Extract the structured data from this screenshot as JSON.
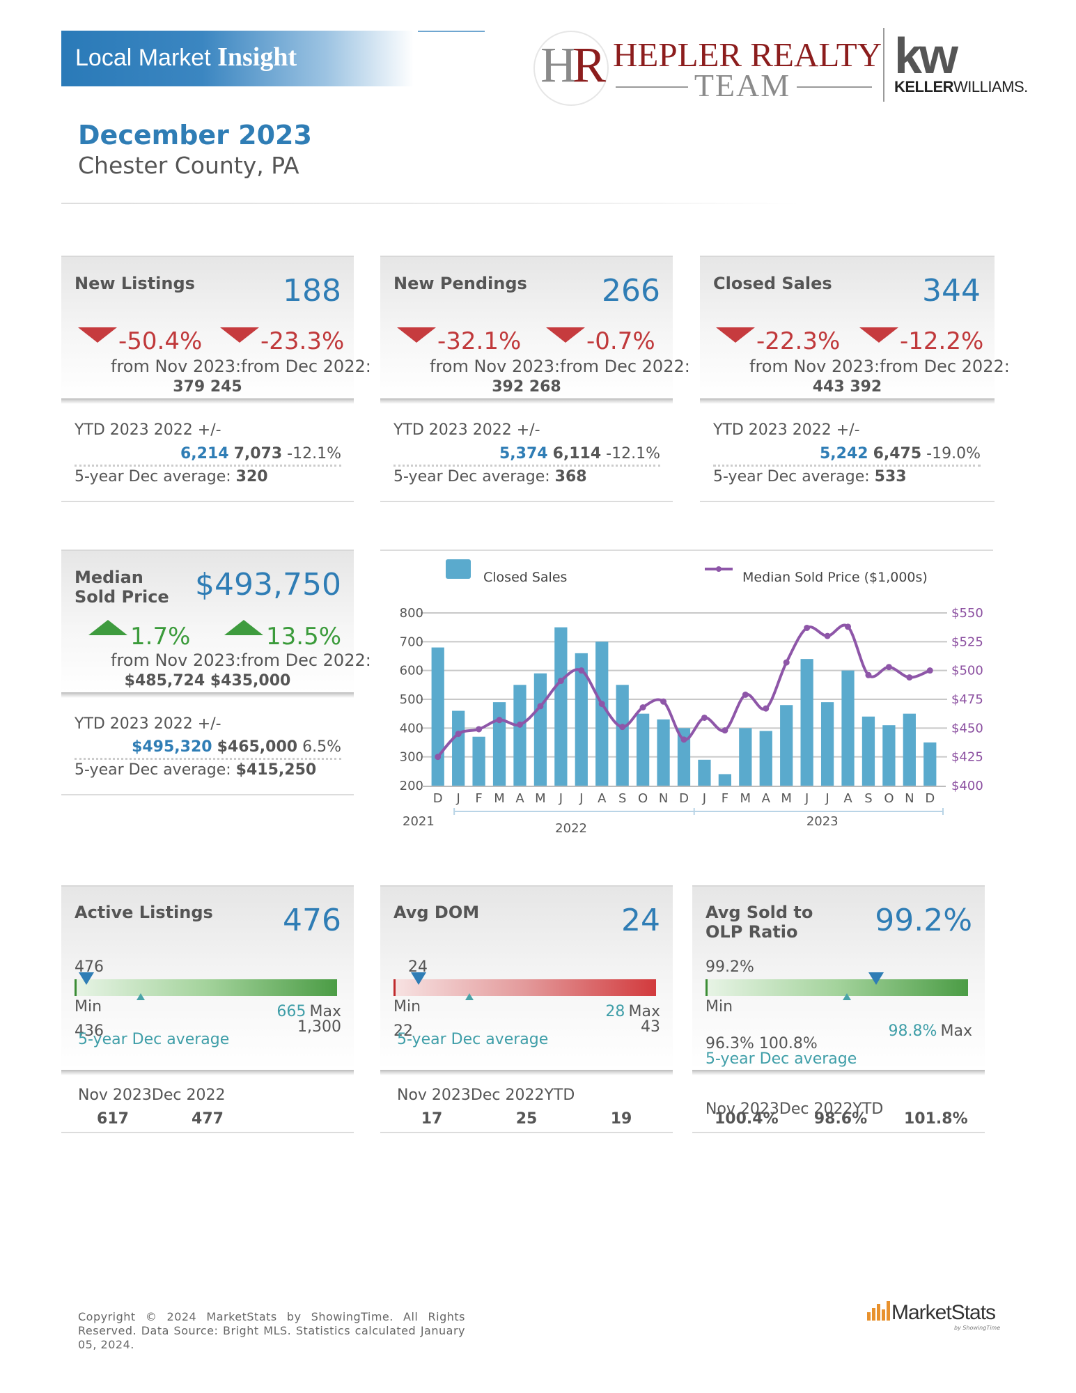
{
  "header": {
    "banner_regular": "Local Market",
    "banner_bold": "Insight",
    "team_monogram_h": "H",
    "team_monogram_r": "R",
    "team_name": "HEPLER REALTY",
    "team_sub": "TEAM",
    "brokerage_logo": "kw",
    "brokerage_bold": "KELLER",
    "brokerage_regular": "WILLIAMS.",
    "period": "December 2023",
    "region": "Chester County, PA"
  },
  "cards": {
    "new_listings": {
      "title": "New Listings",
      "value": "188",
      "pct_month": "-50.4%",
      "pct_year": "-23.3%",
      "from_text": "from Nov 2023:from Dec 2022:",
      "from_vals": "379 245",
      "ytd_label": "YTD 2023 2022 +/-",
      "ytd_cur": "6,214",
      "ytd_prev": "7,073",
      "ytd_pct": "-12.1%",
      "avg_label": "5-year Dec average:",
      "avg_val": "320"
    },
    "new_pendings": {
      "title": "New Pendings",
      "value": "266",
      "pct_month": "-32.1%",
      "pct_year": "-0.7%",
      "from_text": "from Nov 2023:from Dec 2022:",
      "from_vals": "392 268",
      "ytd_label": "YTD 2023 2022 +/-",
      "ytd_cur": "5,374",
      "ytd_prev": "6,114",
      "ytd_pct": "-12.1%",
      "avg_label": "5-year Dec average:",
      "avg_val": "368"
    },
    "closed_sales": {
      "title": "Closed Sales",
      "value": "344",
      "pct_month": "-22.3%",
      "pct_year": "-12.2%",
      "from_text": "from Nov 2023:from Dec 2022:",
      "from_vals": "443 392",
      "ytd_label": "YTD 2023 2022 +/-",
      "ytd_cur": "5,242",
      "ytd_prev": "6,475",
      "ytd_pct": "-19.0%",
      "avg_label": "5-year Dec average:",
      "avg_val": "533"
    },
    "median_price": {
      "title_line1": "Median",
      "title_line2": "Sold Price",
      "value": "$493,750",
      "pct_month": "1.7%",
      "pct_year": "13.5%",
      "from_text": "from Nov 2023:from Dec 2022:",
      "from_vals": "$485,724 $435,000",
      "ytd_label": "YTD 2023 2022 +/-",
      "ytd_cur": "$495,320",
      "ytd_prev": "$465,000",
      "ytd_pct": "6.5%",
      "avg_label": "5-year Dec average:",
      "avg_val": "$415,250"
    },
    "active_listings": {
      "title": "Active Listings",
      "value": "476",
      "gauge_current": "476",
      "gauge_fraction": 0.045,
      "min_label": "Min",
      "min_val": "436",
      "max_val": "1,300",
      "avg_val": "665",
      "max_label": "Max",
      "avg_label": "5-year Dec average",
      "hist_labels": "Nov 2023Dec 2022",
      "hist_vals": [
        "617",
        "477"
      ]
    },
    "avg_dom": {
      "title": "Avg DOM",
      "value": "24",
      "gauge_current": "24",
      "gauge_fraction": 0.095,
      "min_label": "Min",
      "min_val": "22",
      "max_val": "43",
      "avg_val": "28",
      "max_label": "Max",
      "avg_label": "5-year Dec average",
      "hist_labels": "Nov 2023Dec 2022YTD",
      "hist_vals": [
        "17",
        "25",
        "19"
      ]
    },
    "sold_olp": {
      "title_line1": "Avg Sold to",
      "title_line2": "OLP Ratio",
      "value": "99.2%",
      "gauge_current": "99.2%",
      "gauge_fraction": 0.65,
      "min_label": "Min",
      "min_max_vals": "96.3% 100.8%",
      "avg_val": "98.8%",
      "max_label": "Max",
      "avg_label": "5-year Dec average",
      "hist_labels": "Nov 2023Dec 2022YTD",
      "hist_vals": [
        "100.4%",
        "98.6%",
        "101.8%"
      ]
    }
  },
  "chart_data": {
    "type": "bar",
    "legend_bars": "Closed Sales",
    "legend_line": "Median Sold Price ($1,000s)",
    "categories": [
      "D",
      "J",
      "F",
      "M",
      "A",
      "M",
      "J",
      "J",
      "A",
      "S",
      "O",
      "N",
      "D",
      "J",
      "F",
      "M",
      "A",
      "M",
      "J",
      "J",
      "A",
      "S",
      "O",
      "N",
      "D"
    ],
    "year_labels": [
      "2021",
      "2022",
      "2023"
    ],
    "series": [
      {
        "name": "Closed Sales",
        "axis": "left",
        "values": [
          680,
          460,
          370,
          490,
          550,
          590,
          750,
          660,
          700,
          550,
          450,
          430,
          400,
          290,
          240,
          400,
          390,
          480,
          640,
          490,
          600,
          440,
          410,
          450,
          350
        ]
      },
      {
        "name": "Median Sold Price ($1,000s)",
        "axis": "right",
        "values": [
          425,
          445,
          449,
          457,
          453,
          469,
          491,
          500,
          471,
          451,
          468,
          473,
          440,
          459,
          448,
          479,
          467,
          507,
          537,
          530,
          538,
          496,
          503,
          494,
          500
        ]
      }
    ],
    "y_left_ticks": [
      "800",
      "700",
      "600",
      "500",
      "400",
      "300",
      "200"
    ],
    "y_right_ticks": [
      "$550",
      "$525",
      "$500",
      "$475",
      "$450",
      "$425",
      "$400"
    ],
    "ylim_left": [
      200,
      800
    ],
    "ylim_right": [
      400,
      550
    ],
    "colors": {
      "bars": "#5aaacd",
      "line": "#8e56a8",
      "grid": "#c8c8c8"
    }
  },
  "footer": {
    "copyright": "Copyright © 2024 MarketStats by ShowingTime. All Rights Reserved. Data Source: Bright MLS. Statistics calculated January 05, 2024.",
    "brand": "MarketStats",
    "brand_sub": "by ShowingTime"
  }
}
